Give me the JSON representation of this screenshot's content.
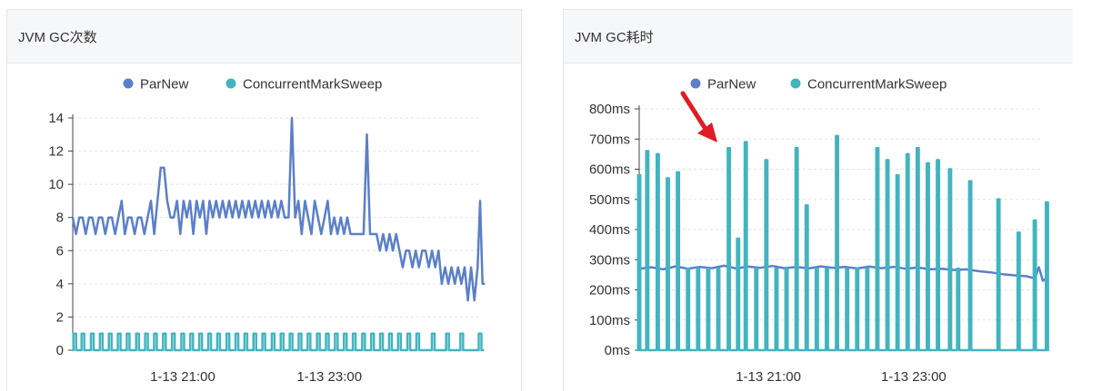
{
  "panels": [
    {
      "title": "JVM GC次数"
    },
    {
      "title": "JVM GC耗时"
    }
  ],
  "colors": {
    "parnew": "#5b7fc9",
    "cms": "#42b4c0",
    "grid": "#e3e3e3",
    "axis": "#444444",
    "annotation": "#e01b24"
  },
  "chart_data": [
    {
      "type": "line",
      "title": "JVM GC次数",
      "legend": [
        "ParNew",
        "ConcurrentMarkSweep"
      ],
      "legend_position": "top",
      "ylim": [
        0,
        14
      ],
      "yticks": [
        0,
        2,
        4,
        6,
        8,
        10,
        12,
        14
      ],
      "ytick_labels": [
        "0",
        "2",
        "4",
        "6",
        "8",
        "10",
        "12",
        "14"
      ],
      "xlim": [
        0,
        100
      ],
      "xticks": [
        {
          "x": 27,
          "label": "1-13 21:00"
        },
        {
          "x": 63,
          "label": "1-13 23:00"
        }
      ],
      "grid": true,
      "series": [
        {
          "name": "ParNew",
          "color": "#5b7fc9",
          "points": [
            [
              0,
              8
            ],
            [
              0.8,
              7
            ],
            [
              1.6,
              8
            ],
            [
              2.4,
              8
            ],
            [
              3.2,
              7
            ],
            [
              4,
              8
            ],
            [
              4.8,
              8
            ],
            [
              5.6,
              7
            ],
            [
              6.4,
              8
            ],
            [
              7.2,
              8
            ],
            [
              8,
              7
            ],
            [
              8.8,
              8
            ],
            [
              9.6,
              8
            ],
            [
              10.4,
              7
            ],
            [
              11.2,
              8
            ],
            [
              12,
              9
            ],
            [
              12.8,
              7
            ],
            [
              13.6,
              8
            ],
            [
              14.4,
              8
            ],
            [
              15.2,
              7
            ],
            [
              16,
              8
            ],
            [
              16.8,
              8
            ],
            [
              17.6,
              7
            ],
            [
              18.4,
              8
            ],
            [
              19.2,
              9
            ],
            [
              20,
              7
            ],
            [
              20.8,
              9
            ],
            [
              21.6,
              11
            ],
            [
              22.4,
              11
            ],
            [
              23.2,
              9
            ],
            [
              24,
              8
            ],
            [
              24.8,
              8
            ],
            [
              25.6,
              9
            ],
            [
              26.4,
              7
            ],
            [
              27.2,
              9
            ],
            [
              28,
              8
            ],
            [
              28.8,
              9
            ],
            [
              29.6,
              7
            ],
            [
              30.4,
              9
            ],
            [
              31.2,
              8
            ],
            [
              32,
              9
            ],
            [
              32.8,
              7
            ],
            [
              33.6,
              9
            ],
            [
              34.4,
              8
            ],
            [
              35.2,
              9
            ],
            [
              36,
              8
            ],
            [
              36.8,
              9
            ],
            [
              37.6,
              8
            ],
            [
              38.4,
              9
            ],
            [
              39.2,
              8
            ],
            [
              40,
              9
            ],
            [
              40.8,
              8
            ],
            [
              41.6,
              9
            ],
            [
              42.4,
              8
            ],
            [
              43.2,
              9
            ],
            [
              44,
              8
            ],
            [
              44.8,
              9
            ],
            [
              45.6,
              8
            ],
            [
              46.4,
              9
            ],
            [
              47.2,
              8
            ],
            [
              48,
              9
            ],
            [
              48.8,
              8
            ],
            [
              49.6,
              9
            ],
            [
              50.4,
              8
            ],
            [
              51.2,
              9
            ],
            [
              52,
              8
            ],
            [
              53,
              8
            ],
            [
              53.8,
              14
            ],
            [
              54.6,
              8
            ],
            [
              55.4,
              9
            ],
            [
              56.2,
              7
            ],
            [
              57,
              9
            ],
            [
              57.8,
              8
            ],
            [
              58.6,
              7
            ],
            [
              59.4,
              9
            ],
            [
              60.2,
              8
            ],
            [
              61,
              7
            ],
            [
              61.8,
              8
            ],
            [
              62.6,
              9
            ],
            [
              63.4,
              7
            ],
            [
              64.2,
              8
            ],
            [
              65,
              7
            ],
            [
              65.8,
              8
            ],
            [
              66.6,
              7
            ],
            [
              67.4,
              8
            ],
            [
              68.2,
              7
            ],
            [
              69,
              7
            ],
            [
              69.8,
              7
            ],
            [
              70.6,
              7
            ],
            [
              71.4,
              7
            ],
            [
              72.2,
              13
            ],
            [
              73,
              7
            ],
            [
              73.8,
              7
            ],
            [
              74.6,
              7
            ],
            [
              75.4,
              6
            ],
            [
              76.2,
              7
            ],
            [
              77,
              6
            ],
            [
              77.8,
              7
            ],
            [
              78.6,
              6
            ],
            [
              79.4,
              7
            ],
            [
              80.2,
              6
            ],
            [
              81,
              5
            ],
            [
              81.8,
              6
            ],
            [
              82.6,
              6
            ],
            [
              83.4,
              5
            ],
            [
              84.2,
              6
            ],
            [
              85,
              5
            ],
            [
              85.8,
              6
            ],
            [
              86.6,
              6
            ],
            [
              87.4,
              5
            ],
            [
              88.2,
              6
            ],
            [
              89,
              5
            ],
            [
              89.8,
              6
            ],
            [
              90.6,
              4
            ],
            [
              91.4,
              5
            ],
            [
              92.2,
              4
            ],
            [
              93,
              5
            ],
            [
              93.8,
              4
            ],
            [
              94.6,
              5
            ],
            [
              95.4,
              4
            ],
            [
              96.2,
              5
            ],
            [
              97,
              3
            ],
            [
              97.8,
              5
            ],
            [
              98.6,
              3
            ],
            [
              99.4,
              5
            ],
            [
              100,
              9
            ],
            [
              100.6,
              4
            ],
            [
              101.2,
              4
            ]
          ]
        },
        {
          "name": "ConcurrentMarkSweep",
          "color": "#42b4c0",
          "spike_value": 1,
          "spikes": [
            0.5,
            2.5,
            4.8,
            7.0,
            9.2,
            11.4,
            13.6,
            15.9,
            18.1,
            20.3,
            22.5,
            24.7,
            27.0,
            29.2,
            31.4,
            33.6,
            35.8,
            38.1,
            40.3,
            42.5,
            44.7,
            46.9,
            49.2,
            51.4,
            53.6,
            55.8,
            58.0,
            60.3,
            62.5,
            64.7,
            66.9,
            69.1,
            71.4,
            73.6,
            75.8,
            78.0,
            80.2,
            82.5,
            84.7,
            88.5,
            92.0,
            95.5,
            100
          ]
        }
      ]
    },
    {
      "type": "line",
      "title": "JVM GC耗时",
      "legend": [
        "ParNew",
        "ConcurrentMarkSweep"
      ],
      "legend_position": "top",
      "ylim": [
        0,
        800
      ],
      "yticks": [
        0,
        100,
        200,
        300,
        400,
        500,
        600,
        700,
        800
      ],
      "ytick_labels": [
        "0ms",
        "100ms",
        "200ms",
        "300ms",
        "400ms",
        "500ms",
        "600ms",
        "700ms",
        "800ms"
      ],
      "xlim": [
        0,
        100
      ],
      "xticks": [
        {
          "x": 32,
          "label": "1-13 21:00"
        },
        {
          "x": 68,
          "label": "1-13 23:00"
        }
      ],
      "grid": true,
      "series": [
        {
          "name": "ParNew",
          "color": "#5b7fc9",
          "points": [
            [
              0,
              270
            ],
            [
              3,
              275
            ],
            [
              6,
              268
            ],
            [
              9,
              278
            ],
            [
              12,
              270
            ],
            [
              15,
              276
            ],
            [
              18,
              272
            ],
            [
              21,
              280
            ],
            [
              24,
              271
            ],
            [
              27,
              277
            ],
            [
              30,
              273
            ],
            [
              33,
              279
            ],
            [
              36,
              272
            ],
            [
              39,
              276
            ],
            [
              42,
              271
            ],
            [
              45,
              278
            ],
            [
              48,
              273
            ],
            [
              51,
              276
            ],
            [
              54,
              271
            ],
            [
              57,
              277
            ],
            [
              60,
              272
            ],
            [
              63,
              276
            ],
            [
              66,
              270
            ],
            [
              69,
              274
            ],
            [
              72,
              268
            ],
            [
              75,
              270
            ],
            [
              78,
              266
            ],
            [
              81,
              268
            ],
            [
              84,
              262
            ],
            [
              87,
              258
            ],
            [
              90,
              252
            ],
            [
              93,
              248
            ],
            [
              96,
              245
            ],
            [
              98,
              238
            ],
            [
              99,
              275
            ],
            [
              100,
              230
            ],
            [
              101,
              240
            ]
          ]
        },
        {
          "name": "ConcurrentMarkSweep",
          "color": "#42b4c0",
          "spikes": [
            [
              0,
              580
            ],
            [
              2.0,
              660
            ],
            [
              4.6,
              650
            ],
            [
              7.1,
              570
            ],
            [
              9.6,
              590
            ],
            [
              12.1,
              270
            ],
            [
              14.6,
              270
            ],
            [
              17.1,
              270
            ],
            [
              19.6,
              270
            ],
            [
              22.2,
              670
            ],
            [
              24.5,
              370
            ],
            [
              26.4,
              690
            ],
            [
              29.0,
              270
            ],
            [
              31.5,
              630
            ],
            [
              34.0,
              270
            ],
            [
              36.5,
              270
            ],
            [
              39.0,
              670
            ],
            [
              41.5,
              480
            ],
            [
              44.0,
              270
            ],
            [
              46.5,
              270
            ],
            [
              49.0,
              710
            ],
            [
              51.5,
              270
            ],
            [
              54.0,
              270
            ],
            [
              56.5,
              270
            ],
            [
              59.0,
              670
            ],
            [
              61.5,
              630
            ],
            [
              64.0,
              580
            ],
            [
              66.5,
              650
            ],
            [
              69.0,
              670
            ],
            [
              71.5,
              620
            ],
            [
              74.0,
              630
            ],
            [
              77.0,
              600
            ],
            [
              79.0,
              270
            ],
            [
              82.0,
              560
            ],
            [
              89.0,
              500
            ],
            [
              94.0,
              390
            ],
            [
              98.0,
              430
            ],
            [
              101.0,
              490
            ]
          ]
        }
      ]
    }
  ]
}
